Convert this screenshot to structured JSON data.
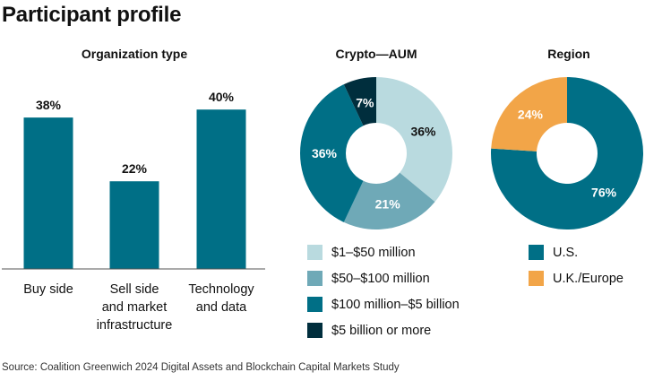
{
  "page": {
    "title": "Participant profile",
    "source": "Source: Coalition Greenwich 2024 Digital Assets and Blockchain Capital Markets Study"
  },
  "colors": {
    "teal": "#006F86",
    "light_teal": "#B9DADF",
    "mid_teal": "#6FA9B7",
    "dark_navy": "#002E3D",
    "orange": "#F2A548",
    "axis": "#555555"
  },
  "chart_data": [
    {
      "type": "bar",
      "title": "Organization type",
      "categories": [
        "Buy side",
        "Sell side and market infrastructure",
        "Technology and data"
      ],
      "category_lines": [
        [
          "Buy side"
        ],
        [
          "Sell side",
          "and market",
          "infrastructure"
        ],
        [
          "Technology",
          "and data"
        ]
      ],
      "values": [
        38,
        22,
        40
      ],
      "data_labels": [
        "38%",
        "22%",
        "40%"
      ],
      "unit": "%",
      "ylim": [
        0,
        45
      ],
      "color": "#006F86"
    },
    {
      "type": "pie",
      "title": "Crypto—AUM",
      "labels": [
        "$1–$50 million",
        "$50–$100 million",
        "$100 million–$5 billion",
        "$5 billion or more"
      ],
      "values": [
        36,
        21,
        36,
        7
      ],
      "data_labels": [
        "36%",
        "21%",
        "36%",
        "7%"
      ],
      "colors": [
        "#B9DADF",
        "#6FA9B7",
        "#006F86",
        "#002E3D"
      ],
      "label_colors": [
        "#111111",
        "#ffffff",
        "#ffffff",
        "#ffffff"
      ],
      "legend_position": "bottom"
    },
    {
      "type": "pie",
      "title": "Region",
      "labels": [
        "U.S.",
        "U.K./Europe"
      ],
      "values": [
        76,
        24
      ],
      "data_labels": [
        "76%",
        "24%"
      ],
      "colors": [
        "#006F86",
        "#F2A548"
      ],
      "label_colors": [
        "#ffffff",
        "#ffffff"
      ],
      "legend_position": "bottom"
    }
  ]
}
